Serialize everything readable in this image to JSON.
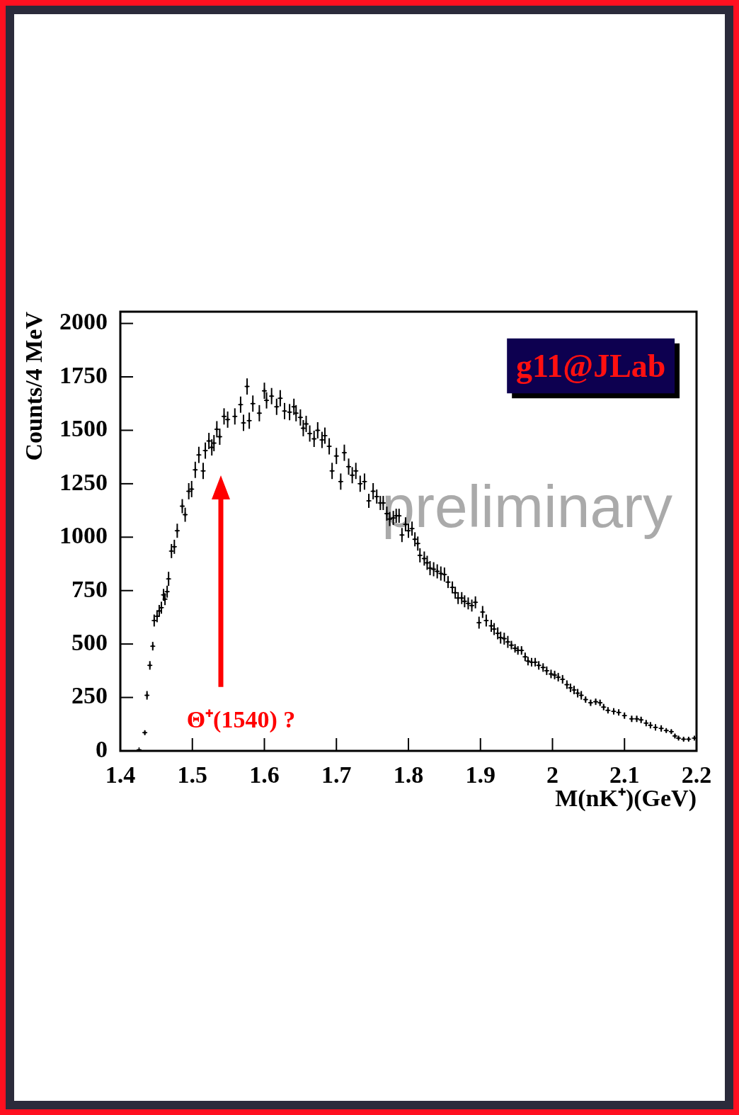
{
  "chart_data": {
    "type": "scatter",
    "xlabel": "M(nK⁺)(GeV)",
    "ylabel": "Counts/4 MeV",
    "annotations": [
      "g11@JLab",
      "preliminary",
      "Θ⁺(1540) ?"
    ],
    "xlim": [
      1.4,
      2.2
    ],
    "xticks": [
      1.4,
      1.5,
      1.6,
      1.7,
      1.8,
      1.9,
      2,
      2.1,
      2.2
    ],
    "ylim": [
      0,
      2055
    ],
    "yticks": [
      0,
      250,
      500,
      750,
      1000,
      1250,
      1500,
      1750,
      2000
    ],
    "marker": "cross",
    "x": [
      1.426,
      1.434,
      1.437,
      1.441,
      1.445,
      1.447,
      1.451,
      1.454,
      1.457,
      1.46,
      1.462,
      1.465,
      1.467,
      1.471,
      1.475,
      1.479,
      1.486,
      1.49,
      1.495,
      1.499,
      1.504,
      1.509,
      1.515,
      1.518,
      1.523,
      1.527,
      1.53,
      1.534,
      1.538,
      1.544,
      1.549,
      1.559,
      1.567,
      1.571,
      1.576,
      1.579,
      1.584,
      1.593,
      1.6,
      1.603,
      1.61,
      1.617,
      1.622,
      1.628,
      1.635,
      1.641,
      1.644,
      1.65,
      1.654,
      1.658,
      1.663,
      1.669,
      1.674,
      1.68,
      1.684,
      1.69,
      1.694,
      1.7,
      1.706,
      1.711,
      1.717,
      1.722,
      1.727,
      1.733,
      1.739,
      1.745,
      1.751,
      1.756,
      1.761,
      1.765,
      1.77,
      1.774,
      1.779,
      1.783,
      1.787,
      1.791,
      1.796,
      1.8,
      1.805,
      1.809,
      1.813,
      1.816,
      1.822,
      1.826,
      1.83,
      1.835,
      1.84,
      1.845,
      1.85,
      1.855,
      1.861,
      1.865,
      1.869,
      1.874,
      1.878,
      1.883,
      1.888,
      1.893,
      1.898,
      1.903,
      1.908,
      1.915,
      1.919,
      1.924,
      1.928,
      1.933,
      1.938,
      1.943,
      1.948,
      1.952,
      1.957,
      1.962,
      1.966,
      1.971,
      1.976,
      1.981,
      1.987,
      1.992,
      1.998,
      2.003,
      2.008,
      2.014,
      2.02,
      2.025,
      2.03,
      2.035,
      2.04,
      2.046,
      2.053,
      2.06,
      2.066,
      2.071,
      2.077,
      2.085,
      2.092,
      2.1,
      2.11,
      2.117,
      2.123,
      2.13,
      2.136,
      2.143,
      2.151,
      2.158,
      2.165,
      2.17,
      2.175,
      2.182,
      2.189,
      2.197
    ],
    "series": [
      {
        "color": "#000000",
        "values": [
          5,
          85,
          260,
          400,
          490,
          610,
          630,
          655,
          670,
          730,
          710,
          745,
          805,
          935,
          955,
          1030,
          1145,
          1105,
          1215,
          1225,
          1315,
          1385,
          1310,
          1405,
          1450,
          1420,
          1440,
          1505,
          1470,
          1565,
          1550,
          1565,
          1620,
          1535,
          1705,
          1545,
          1625,
          1580,
          1685,
          1640,
          1660,
          1610,
          1650,
          1590,
          1585,
          1610,
          1580,
          1560,
          1510,
          1530,
          1485,
          1460,
          1500,
          1455,
          1475,
          1425,
          1310,
          1380,
          1260,
          1395,
          1330,
          1290,
          1310,
          1250,
          1260,
          1170,
          1215,
          1190,
          1160,
          1160,
          1110,
          1085,
          1090,
          1100,
          1100,
          1010,
          1060,
          1030,
          1040,
          990,
          970,
          915,
          900,
          880,
          855,
          850,
          840,
          830,
          825,
          790,
          765,
          740,
          715,
          715,
          700,
          690,
          680,
          695,
          600,
          650,
          610,
          585,
          570,
          550,
          530,
          525,
          510,
          495,
          480,
          470,
          470,
          440,
          420,
          415,
          415,
          400,
          390,
          375,
          360,
          355,
          345,
          335,
          310,
          295,
          285,
          270,
          260,
          240,
          225,
          230,
          225,
          205,
          190,
          185,
          180,
          165,
          150,
          150,
          145,
          130,
          120,
          110,
          105,
          95,
          90,
          70,
          60,
          55,
          55,
          60
        ],
        "errors": [
          null,
          10,
          20,
          20,
          20,
          28,
          28,
          28,
          28,
          28,
          28,
          28,
          33,
          33,
          33,
          33,
          33,
          33,
          38,
          38,
          38,
          38,
          38,
          38,
          38,
          38,
          38,
          38,
          38,
          38,
          38,
          38,
          38,
          38,
          38,
          38,
          38,
          38,
          38,
          38,
          38,
          38,
          38,
          38,
          38,
          38,
          38,
          38,
          38,
          38,
          38,
          38,
          38,
          38,
          38,
          38,
          38,
          38,
          38,
          38,
          38,
          38,
          38,
          38,
          38,
          33,
          38,
          33,
          33,
          33,
          33,
          33,
          33,
          33,
          33,
          33,
          33,
          33,
          33,
          33,
          33,
          33,
          33,
          33,
          33,
          33,
          33,
          33,
          33,
          28,
          28,
          28,
          28,
          28,
          28,
          28,
          28,
          28,
          28,
          28,
          28,
          28,
          28,
          28,
          28,
          28,
          28,
          20,
          20,
          20,
          20,
          20,
          20,
          20,
          20,
          20,
          20,
          20,
          20,
          20,
          20,
          20,
          20,
          20,
          20,
          20,
          20,
          15,
          15,
          15,
          15,
          15,
          15,
          15,
          15,
          15,
          15,
          15,
          15,
          15,
          15,
          15,
          15,
          10,
          10,
          10,
          10,
          10,
          10,
          10
        ],
        "xerrors": [
          0.002,
          0.002,
          0.002,
          0.002,
          0.002,
          0.002,
          0.002,
          0.002,
          0.002,
          0.002,
          0.002,
          0.002,
          0.002,
          0.002,
          0.002,
          0.002,
          0.002,
          0.002,
          0.002,
          0.002,
          0.002,
          0.002,
          0.002,
          0.002,
          0.002,
          0.002,
          0.002,
          0.002,
          0.002,
          0.002,
          0.002,
          0.002,
          0.002,
          0.002,
          0.002,
          0.002,
          0.002,
          0.002,
          0.002,
          0.002,
          0.002,
          0.002,
          0.002,
          0.002,
          0.002,
          0.002,
          0.002,
          0.002,
          0.002,
          0.002,
          0.002,
          0.002,
          0.002,
          0.002,
          0.002,
          0.002,
          0.002,
          0.002,
          0.002,
          0.002,
          0.002,
          0.002,
          0.002,
          0.002,
          0.002,
          0.002,
          0.002,
          0.002,
          0.002,
          0.002,
          0.002,
          0.002,
          0.002,
          0.002,
          0.002,
          0.002,
          0.002,
          0.002,
          0.002,
          0.002,
          0.002,
          0.002,
          0.002,
          0.002,
          0.002,
          0.002,
          0.002,
          0.002,
          0.002,
          0.002,
          0.002,
          0.002,
          0.002,
          0.002,
          0.002,
          0.002,
          0.002,
          0.002,
          0.002,
          0.002,
          0.002,
          0.002,
          0.002,
          0.002,
          0.002,
          0.002,
          0.002,
          0.002,
          0.002,
          0.002,
          0.002,
          0.002,
          0.002,
          0.002,
          0.002,
          0.002,
          0.002,
          0.002,
          0.002,
          0.002,
          0.002,
          0.002,
          0.002,
          0.002,
          0.002,
          0.002,
          0.002,
          0.002,
          0.002,
          0.002,
          0.002,
          0.002,
          0.002,
          0.002,
          0.002,
          0.002,
          0.002,
          0.002,
          0.002,
          0.002,
          0.002,
          0.002,
          0.002,
          0.002,
          0.002,
          0.002,
          0.002,
          0.002,
          0.002,
          0.002
        ]
      }
    ]
  }
}
